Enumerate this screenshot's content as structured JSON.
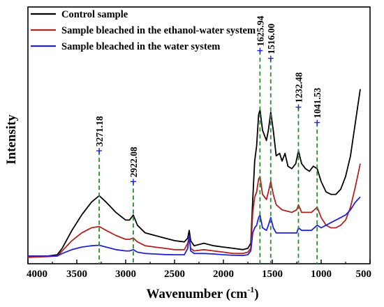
{
  "chart_data": {
    "type": "line",
    "xlabel_main": "Wavenumber (cm",
    "xlabel_sup": "-1",
    "xlabel_end": ")",
    "ylabel": "Intensity",
    "xlim": [
      4000,
      500
    ],
    "x_reversed": true,
    "ylim": [
      0,
      1
    ],
    "y_ticks_shown": false,
    "grid": false,
    "legend_position": "top-left",
    "x_ticks": [
      4000,
      3500,
      3000,
      2500,
      2000,
      1500,
      1000,
      500
    ],
    "x_tick_labels": [
      "4000",
      "3500",
      "3000",
      "2500",
      "2000",
      "1500",
      "1000",
      "500"
    ],
    "series": [
      {
        "name": "Control sample",
        "color": "#000000",
        "points": [
          [
            4000,
            0.03
          ],
          [
            3800,
            0.03
          ],
          [
            3700,
            0.035
          ],
          [
            3650,
            0.06
          ],
          [
            3550,
            0.13
          ],
          [
            3450,
            0.19
          ],
          [
            3350,
            0.24
          ],
          [
            3271,
            0.265
          ],
          [
            3200,
            0.24
          ],
          [
            3100,
            0.2
          ],
          [
            3000,
            0.17
          ],
          [
            2960,
            0.17
          ],
          [
            2922,
            0.19
          ],
          [
            2880,
            0.15
          ],
          [
            2800,
            0.12
          ],
          [
            2700,
            0.11
          ],
          [
            2600,
            0.1
          ],
          [
            2500,
            0.09
          ],
          [
            2400,
            0.085
          ],
          [
            2365,
            0.1
          ],
          [
            2350,
            0.13
          ],
          [
            2335,
            0.09
          ],
          [
            2300,
            0.07
          ],
          [
            2200,
            0.08
          ],
          [
            2100,
            0.07
          ],
          [
            2000,
            0.065
          ],
          [
            1900,
            0.06
          ],
          [
            1800,
            0.055
          ],
          [
            1750,
            0.06
          ],
          [
            1720,
            0.08
          ],
          [
            1700,
            0.25
          ],
          [
            1680,
            0.4
          ],
          [
            1660,
            0.46
          ],
          [
            1640,
            0.58
          ],
          [
            1626,
            0.6
          ],
          [
            1600,
            0.52
          ],
          [
            1560,
            0.48
          ],
          [
            1540,
            0.52
          ],
          [
            1516,
            0.59
          ],
          [
            1490,
            0.52
          ],
          [
            1460,
            0.42
          ],
          [
            1425,
            0.43
          ],
          [
            1400,
            0.4
          ],
          [
            1370,
            0.43
          ],
          [
            1340,
            0.38
          ],
          [
            1300,
            0.37
          ],
          [
            1260,
            0.39
          ],
          [
            1232,
            0.44
          ],
          [
            1200,
            0.39
          ],
          [
            1160,
            0.37
          ],
          [
            1120,
            0.36
          ],
          [
            1080,
            0.38
          ],
          [
            1041,
            0.37
          ],
          [
            1000,
            0.32
          ],
          [
            950,
            0.28
          ],
          [
            900,
            0.27
          ],
          [
            850,
            0.27
          ],
          [
            800,
            0.29
          ],
          [
            750,
            0.34
          ],
          [
            700,
            0.42
          ],
          [
            650,
            0.55
          ],
          [
            600,
            0.68
          ]
        ]
      },
      {
        "name": "Sample bleached in the ethanol-water system",
        "color": "#b22222",
        "points": [
          [
            4000,
            0.025
          ],
          [
            3800,
            0.028
          ],
          [
            3700,
            0.03
          ],
          [
            3650,
            0.05
          ],
          [
            3550,
            0.09
          ],
          [
            3450,
            0.12
          ],
          [
            3350,
            0.14
          ],
          [
            3271,
            0.145
          ],
          [
            3200,
            0.13
          ],
          [
            3100,
            0.11
          ],
          [
            3000,
            0.095
          ],
          [
            2960,
            0.095
          ],
          [
            2922,
            0.1
          ],
          [
            2880,
            0.085
          ],
          [
            2800,
            0.07
          ],
          [
            2700,
            0.065
          ],
          [
            2600,
            0.06
          ],
          [
            2500,
            0.055
          ],
          [
            2400,
            0.055
          ],
          [
            2365,
            0.08
          ],
          [
            2350,
            0.11
          ],
          [
            2335,
            0.06
          ],
          [
            2300,
            0.05
          ],
          [
            2200,
            0.055
          ],
          [
            2100,
            0.05
          ],
          [
            2000,
            0.045
          ],
          [
            1900,
            0.04
          ],
          [
            1800,
            0.04
          ],
          [
            1750,
            0.045
          ],
          [
            1720,
            0.06
          ],
          [
            1700,
            0.2
          ],
          [
            1680,
            0.26
          ],
          [
            1660,
            0.28
          ],
          [
            1640,
            0.33
          ],
          [
            1626,
            0.34
          ],
          [
            1600,
            0.27
          ],
          [
            1560,
            0.25
          ],
          [
            1540,
            0.28
          ],
          [
            1516,
            0.32
          ],
          [
            1490,
            0.27
          ],
          [
            1460,
            0.23
          ],
          [
            1400,
            0.21
          ],
          [
            1300,
            0.2
          ],
          [
            1250,
            0.21
          ],
          [
            1232,
            0.23
          ],
          [
            1200,
            0.2
          ],
          [
            1100,
            0.2
          ],
          [
            1041,
            0.22
          ],
          [
            1000,
            0.18
          ],
          [
            950,
            0.15
          ],
          [
            900,
            0.14
          ],
          [
            850,
            0.14
          ],
          [
            800,
            0.15
          ],
          [
            750,
            0.17
          ],
          [
            700,
            0.22
          ],
          [
            650,
            0.3
          ],
          [
            600,
            0.39
          ]
        ]
      },
      {
        "name": "Sample bleached in the water system",
        "color": "#2222dd",
        "points": [
          [
            4000,
            0.03
          ],
          [
            3800,
            0.03
          ],
          [
            3700,
            0.03
          ],
          [
            3650,
            0.04
          ],
          [
            3550,
            0.055
          ],
          [
            3450,
            0.065
          ],
          [
            3350,
            0.07
          ],
          [
            3271,
            0.072
          ],
          [
            3200,
            0.065
          ],
          [
            3100,
            0.055
          ],
          [
            3000,
            0.05
          ],
          [
            2960,
            0.05
          ],
          [
            2922,
            0.055
          ],
          [
            2880,
            0.045
          ],
          [
            2800,
            0.04
          ],
          [
            2700,
            0.038
          ],
          [
            2600,
            0.036
          ],
          [
            2500,
            0.035
          ],
          [
            2400,
            0.035
          ],
          [
            2365,
            0.06
          ],
          [
            2350,
            0.11
          ],
          [
            2335,
            0.05
          ],
          [
            2300,
            0.04
          ],
          [
            2200,
            0.04
          ],
          [
            2100,
            0.038
          ],
          [
            2000,
            0.035
          ],
          [
            1900,
            0.033
          ],
          [
            1800,
            0.032
          ],
          [
            1750,
            0.035
          ],
          [
            1720,
            0.05
          ],
          [
            1700,
            0.12
          ],
          [
            1680,
            0.14
          ],
          [
            1660,
            0.15
          ],
          [
            1640,
            0.18
          ],
          [
            1626,
            0.19
          ],
          [
            1600,
            0.14
          ],
          [
            1560,
            0.13
          ],
          [
            1540,
            0.15
          ],
          [
            1516,
            0.18
          ],
          [
            1490,
            0.14
          ],
          [
            1460,
            0.12
          ],
          [
            1400,
            0.12
          ],
          [
            1300,
            0.12
          ],
          [
            1250,
            0.12
          ],
          [
            1232,
            0.14
          ],
          [
            1200,
            0.13
          ],
          [
            1100,
            0.13
          ],
          [
            1041,
            0.15
          ],
          [
            1000,
            0.14
          ],
          [
            950,
            0.15
          ],
          [
            900,
            0.16
          ],
          [
            850,
            0.17
          ],
          [
            800,
            0.18
          ],
          [
            750,
            0.19
          ],
          [
            700,
            0.21
          ],
          [
            650,
            0.24
          ],
          [
            600,
            0.26
          ]
        ]
      }
    ],
    "peaks": [
      {
        "wavenumber": 3271.18,
        "label": "3271.18",
        "y": 0.44
      },
      {
        "wavenumber": 2922.08,
        "label": "2922.08",
        "y": 0.32
      },
      {
        "wavenumber": 1625.94,
        "label": "1625.94",
        "y": 0.83
      },
      {
        "wavenumber": 1516.0,
        "label": "1516.00",
        "y": 0.8
      },
      {
        "wavenumber": 1232.48,
        "label": "1232.48",
        "y": 0.61
      },
      {
        "wavenumber": 1041.53,
        "label": "1041.53",
        "y": 0.55
      }
    ],
    "peak_line_color": "#2e8b2e",
    "peak_marker_color": "#2222dd"
  }
}
